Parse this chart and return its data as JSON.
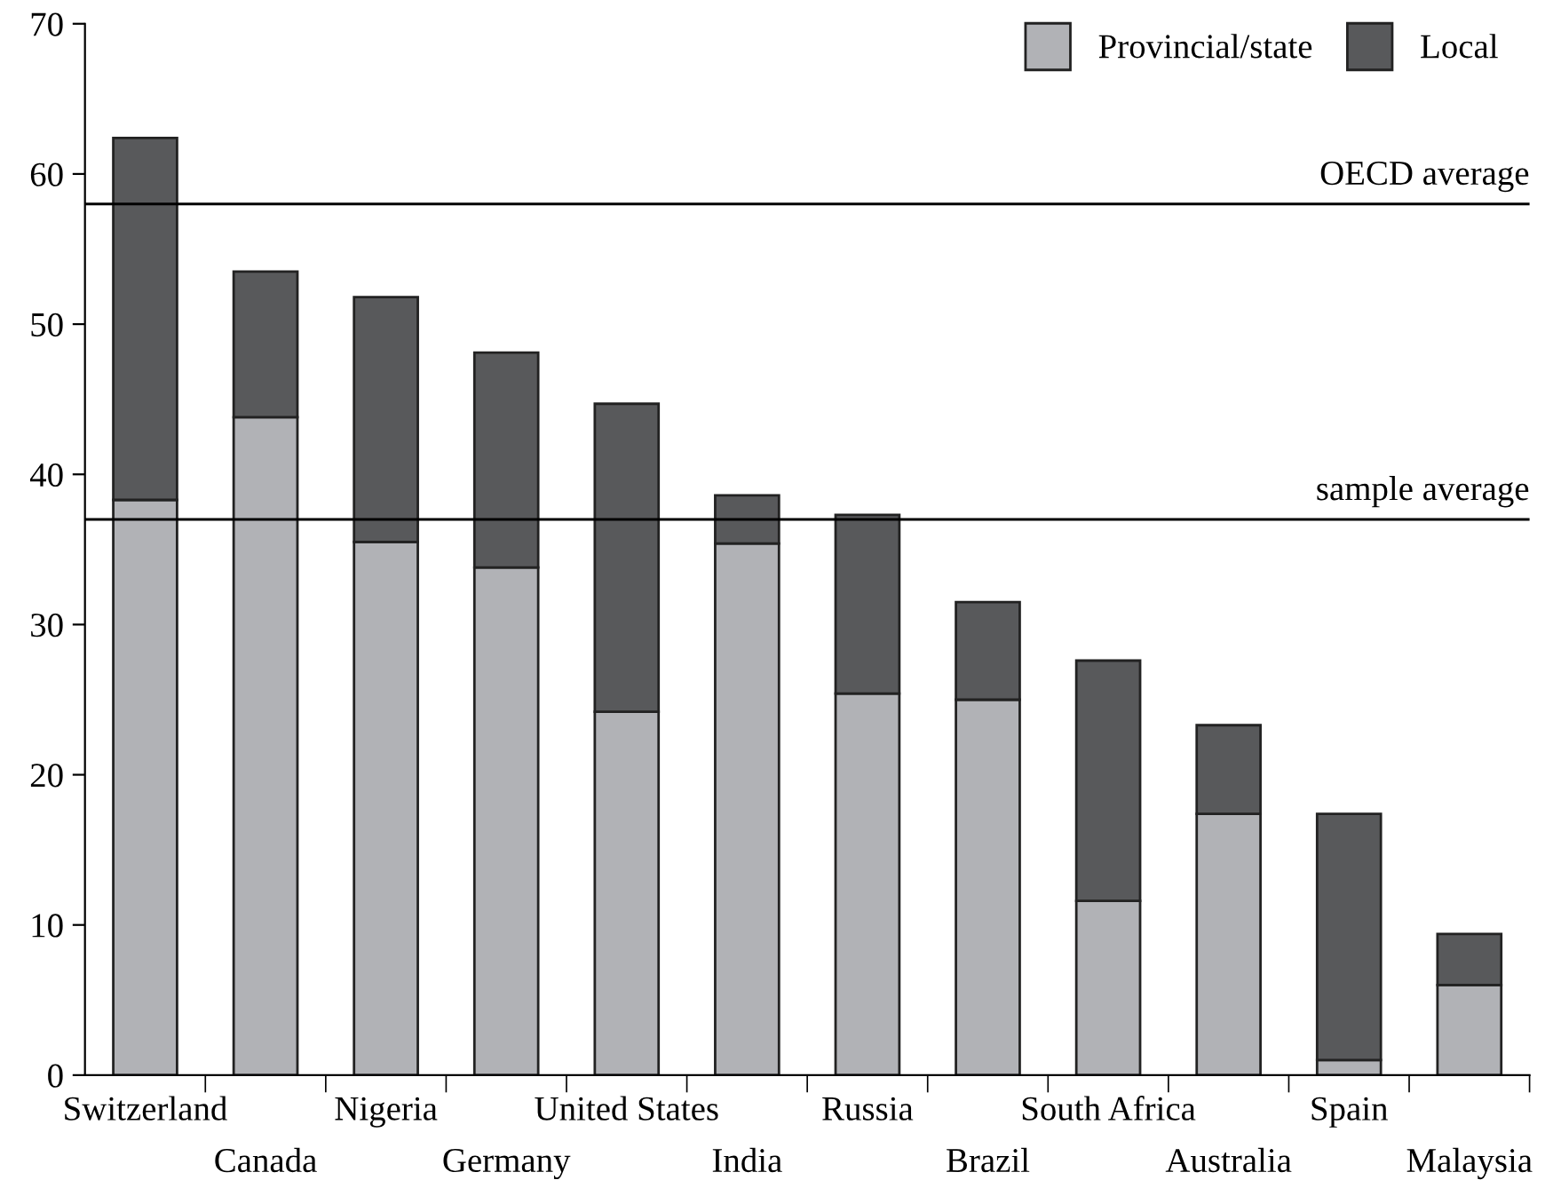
{
  "chart_data": {
    "type": "bar",
    "stacked": true,
    "categories": [
      "Switzerland",
      "Canada",
      "Nigeria",
      "Germany",
      "United States",
      "India",
      "Russia",
      "Brazil",
      "South Africa",
      "Australia",
      "Spain",
      "Malaysia"
    ],
    "series": [
      {
        "name": "Provincial/state",
        "color": "#b1b2b6",
        "values": [
          38.3,
          43.8,
          35.5,
          33.8,
          24.2,
          35.4,
          25.4,
          25.0,
          11.6,
          17.4,
          1.0,
          6.0
        ]
      },
      {
        "name": "Local",
        "color": "#58595b",
        "values": [
          24.1,
          9.7,
          16.3,
          14.3,
          20.5,
          3.2,
          11.9,
          6.5,
          16.0,
          5.9,
          16.4,
          3.4
        ]
      }
    ],
    "ylim": [
      0,
      70
    ],
    "yticks": [
      0,
      10,
      20,
      30,
      40,
      50,
      60,
      70
    ],
    "ref_lines": [
      {
        "axis": "y",
        "value": 58,
        "label": "OECD average",
        "color": "#000000"
      },
      {
        "axis": "y",
        "value": 37,
        "label": "sample average",
        "color": "#000000"
      }
    ],
    "grid": false,
    "legend": "top right"
  }
}
